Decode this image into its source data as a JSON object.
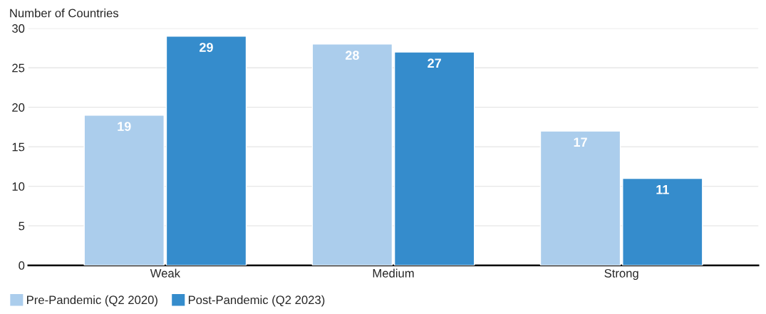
{
  "chart_data": {
    "type": "bar",
    "ylabel": "Number of Countries",
    "categories": [
      "Weak",
      "Medium",
      "Strong"
    ],
    "series": [
      {
        "name": "Pre-Pandemic (Q2 2020)",
        "color": "#abcdec",
        "values": [
          19,
          28,
          17
        ]
      },
      {
        "name": "Post-Pandemic (Q2 2023)",
        "color": "#358ccc",
        "values": [
          29,
          27,
          11
        ]
      }
    ],
    "ylim": [
      0,
      30
    ],
    "yticks": [
      0,
      5,
      10,
      15,
      20,
      25,
      30
    ],
    "grid": "y",
    "legend": "bottom left",
    "data_labels": true
  }
}
